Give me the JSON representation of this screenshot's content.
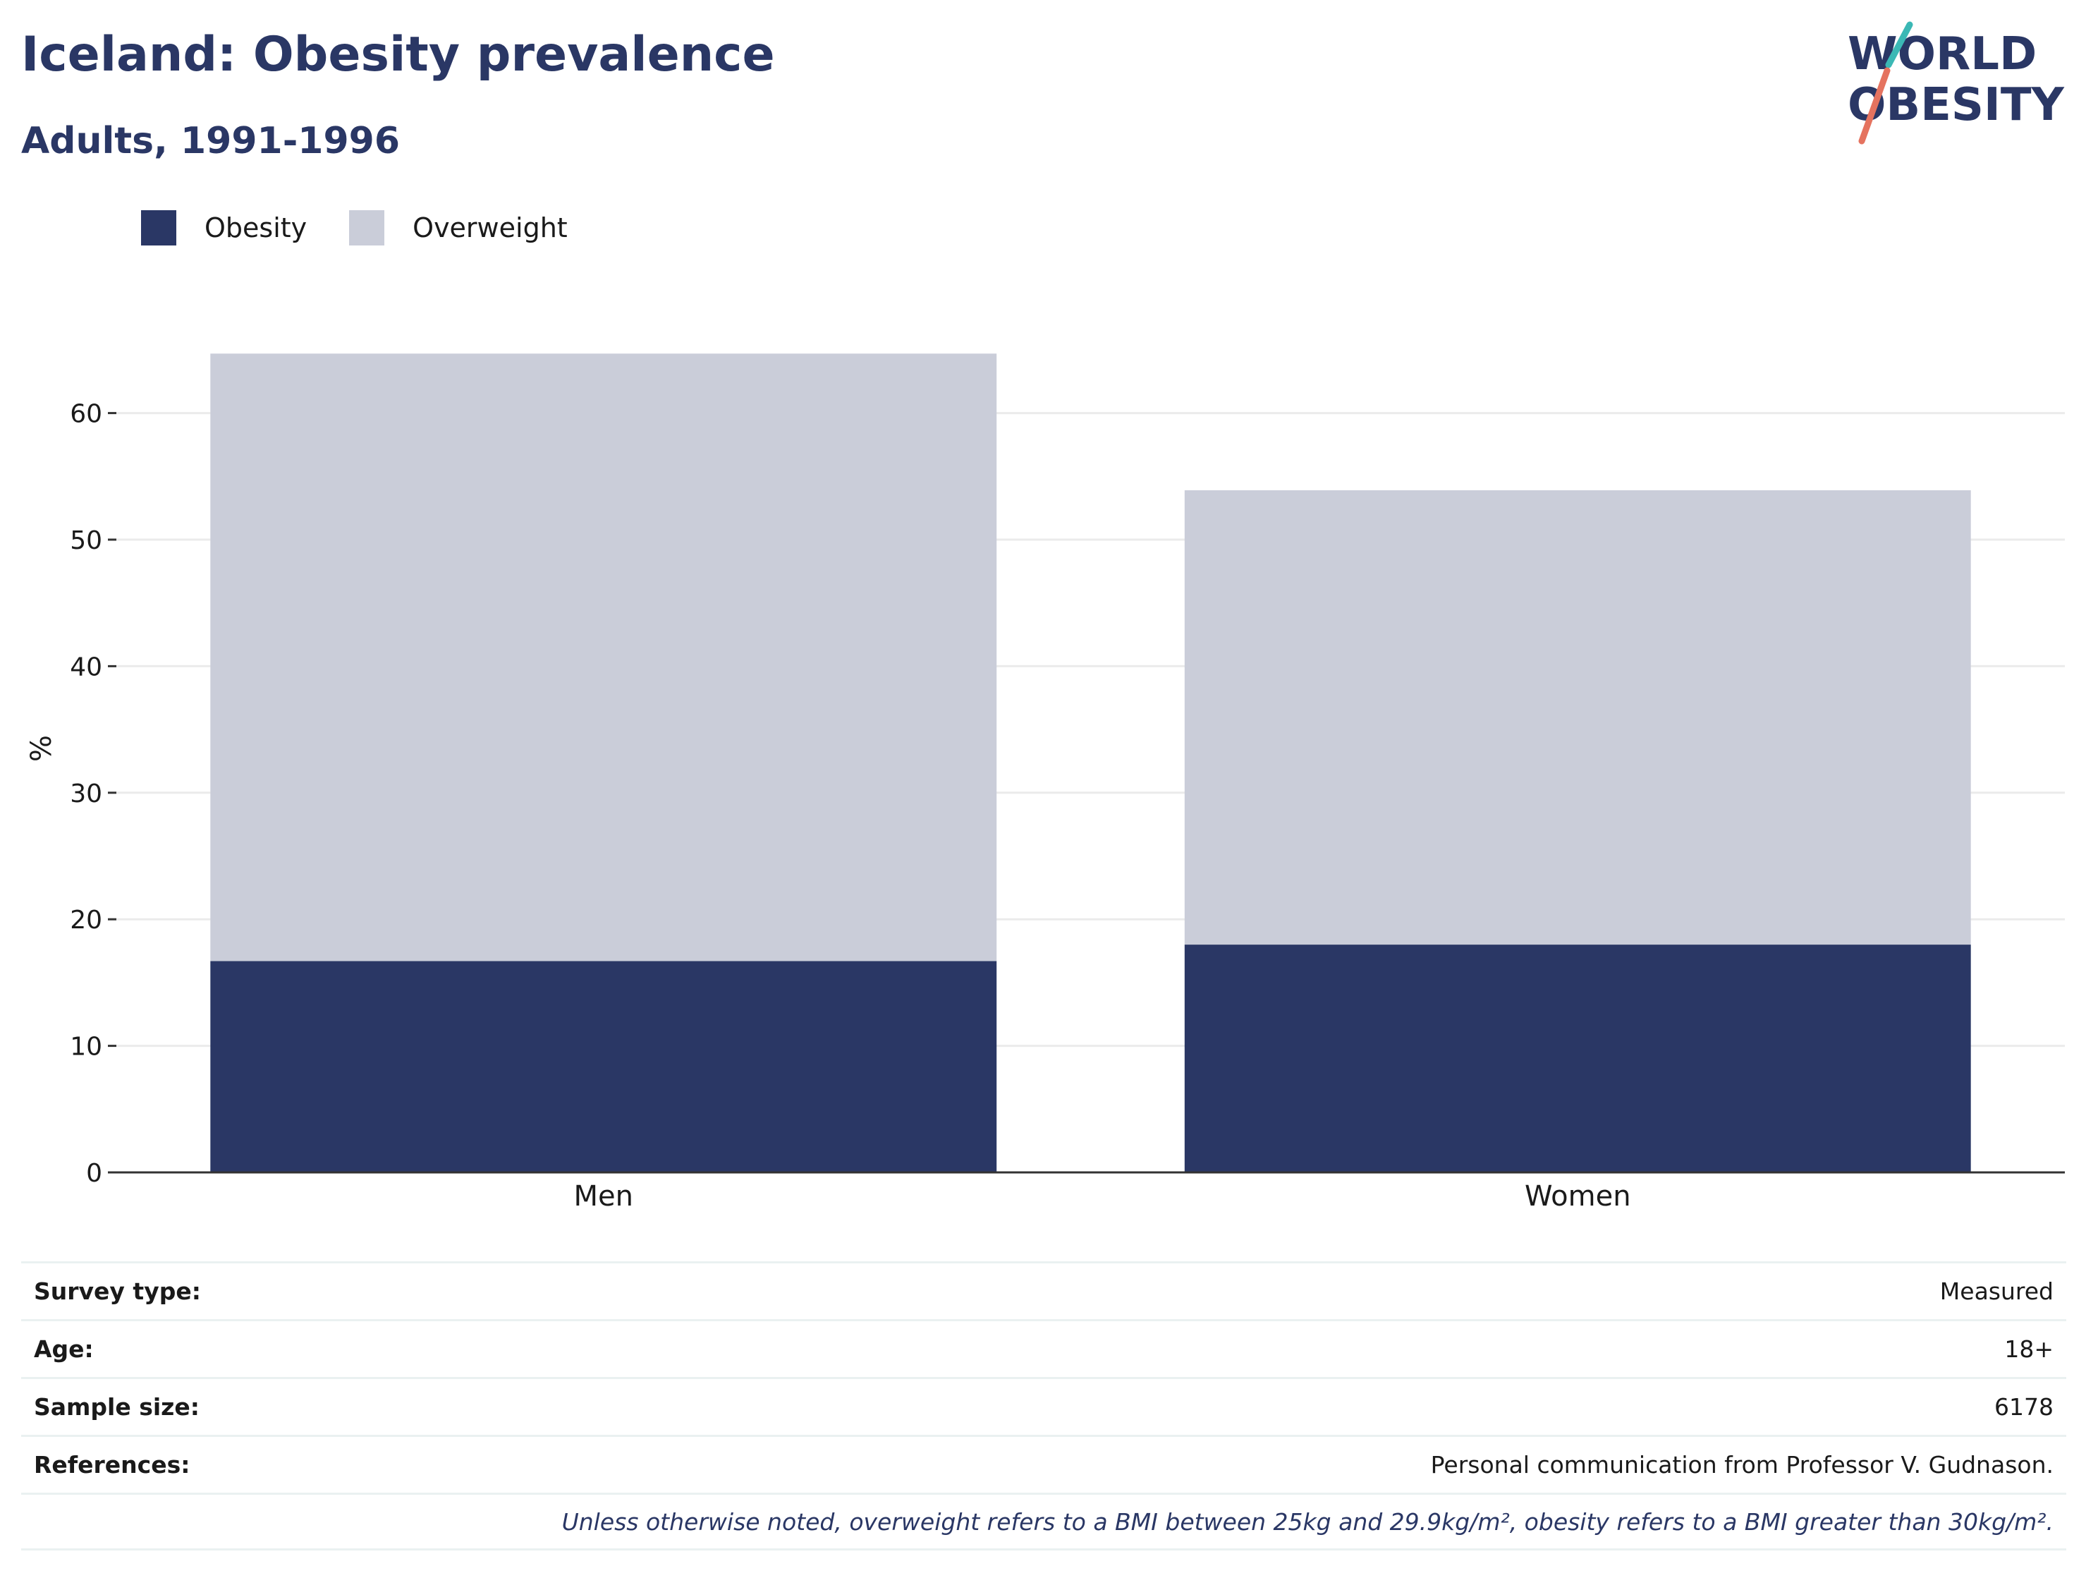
{
  "header": {
    "title": "Iceland: Obesity prevalence",
    "subtitle": "Adults, 1991-1996",
    "logo_line1": "WORLD",
    "logo_line2": "OBESITY"
  },
  "colors": {
    "obesity": "#2a3765",
    "overweight": "#cacdd9",
    "text_dark": "#2a3765",
    "logo_teal": "#3bb8b5",
    "logo_coral": "#e5735f"
  },
  "chart_data": {
    "type": "bar",
    "stacked": true,
    "categories": [
      "Men",
      "Women"
    ],
    "series": [
      {
        "name": "Obesity",
        "values": [
          16.7,
          18.0
        ]
      },
      {
        "name": "Overweight",
        "values": [
          48.0,
          35.9
        ]
      }
    ],
    "ylabel": "%",
    "xlabel": "",
    "ylim": [
      0,
      67
    ],
    "yticks": [
      0,
      10,
      20,
      30,
      40,
      50,
      60
    ],
    "legend_position": "top-left",
    "grid": true
  },
  "meta": {
    "survey_type_label": "Survey type:",
    "survey_type_value": "Measured",
    "age_label": "Age:",
    "age_value": "18+",
    "sample_size_label": "Sample size:",
    "sample_size_value": "6178",
    "references_label": "References:",
    "references_value": "Personal communication from Professor V. Gudnason.",
    "footnote": "Unless otherwise noted, overweight refers to a BMI between 25kg and 29.9kg/m², obesity refers to a BMI greater than 30kg/m²."
  }
}
